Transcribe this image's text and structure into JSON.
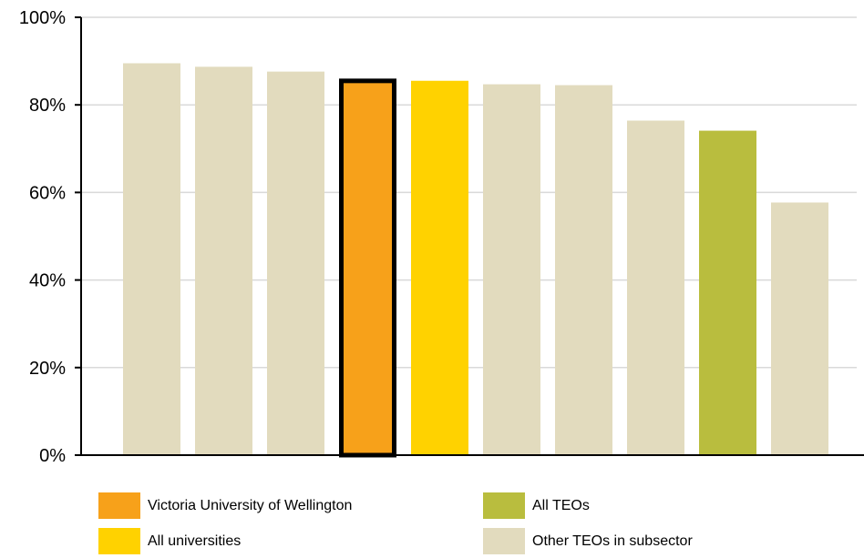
{
  "chart_data": {
    "type": "bar",
    "title": "",
    "xlabel": "",
    "ylabel": "",
    "ylim": [
      0,
      100
    ],
    "y_ticks": [
      "0%",
      "20%",
      "40%",
      "60%",
      "80%",
      "100%"
    ],
    "y_tick_values": [
      0,
      20,
      40,
      60,
      80,
      100
    ],
    "grid": true,
    "values": [
      89.5,
      88.7,
      87.6,
      86.0,
      85.5,
      84.7,
      84.5,
      76.4,
      74.1,
      57.7
    ],
    "bar_groups": [
      "other",
      "other",
      "other",
      "victoria",
      "universities",
      "other",
      "other",
      "other",
      "all_teos",
      "other"
    ],
    "highlighted_index": 3,
    "legend": [
      {
        "key": "victoria",
        "label": "Victoria University of Wellington",
        "color": "#F7A11A"
      },
      {
        "key": "universities",
        "label": "All universities",
        "color": "#FFD200"
      },
      {
        "key": "all_teos",
        "label": "All TEOs",
        "color": "#B9BD3E"
      },
      {
        "key": "other",
        "label": "Other TEOs in subsector",
        "color": "#E2DBBE"
      }
    ],
    "legend_placement": "bottom"
  }
}
